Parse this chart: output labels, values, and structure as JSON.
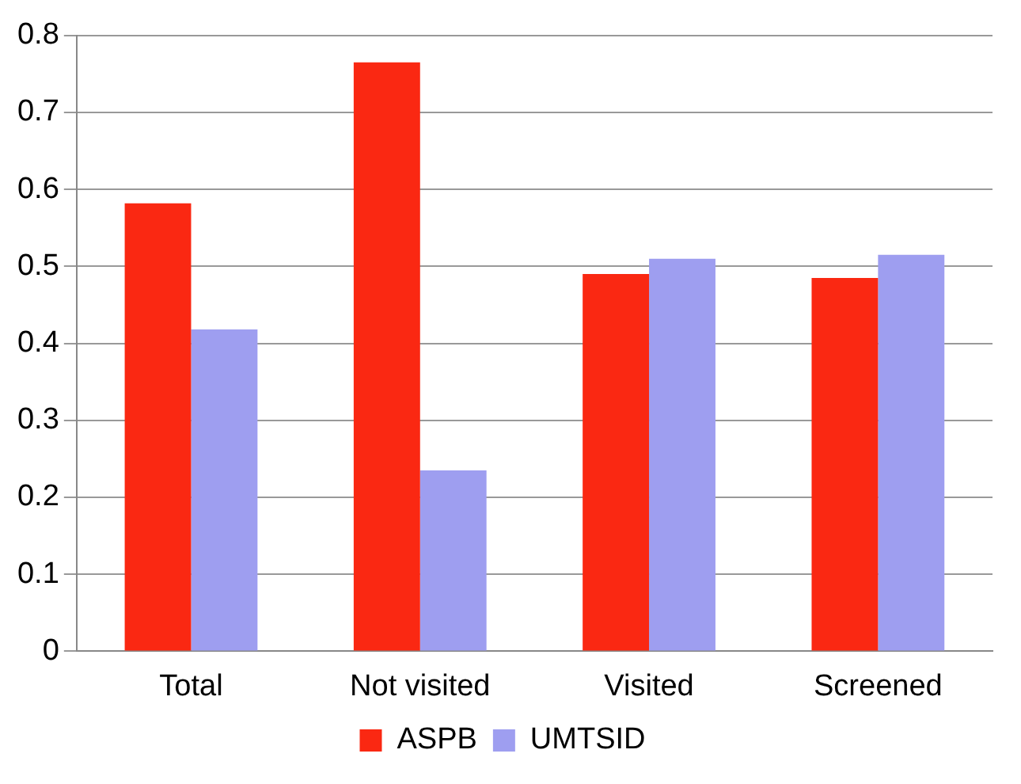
{
  "chart_data": {
    "type": "bar",
    "categories": [
      "Total",
      "Not visited",
      "Visited",
      "Screened"
    ],
    "series": [
      {
        "name": "ASPB",
        "color": "#fa2812",
        "values": [
          0.582,
          0.765,
          0.49,
          0.485
        ]
      },
      {
        "name": "UMTSID",
        "color": "#9e9ef0",
        "values": [
          0.418,
          0.235,
          0.51,
          0.515
        ]
      }
    ],
    "ylim": [
      0,
      0.8
    ],
    "yticks": [
      0,
      0.1,
      0.2,
      0.3,
      0.4,
      0.5,
      0.6,
      0.7,
      0.8
    ],
    "grid": "y",
    "legend": "bottom"
  }
}
